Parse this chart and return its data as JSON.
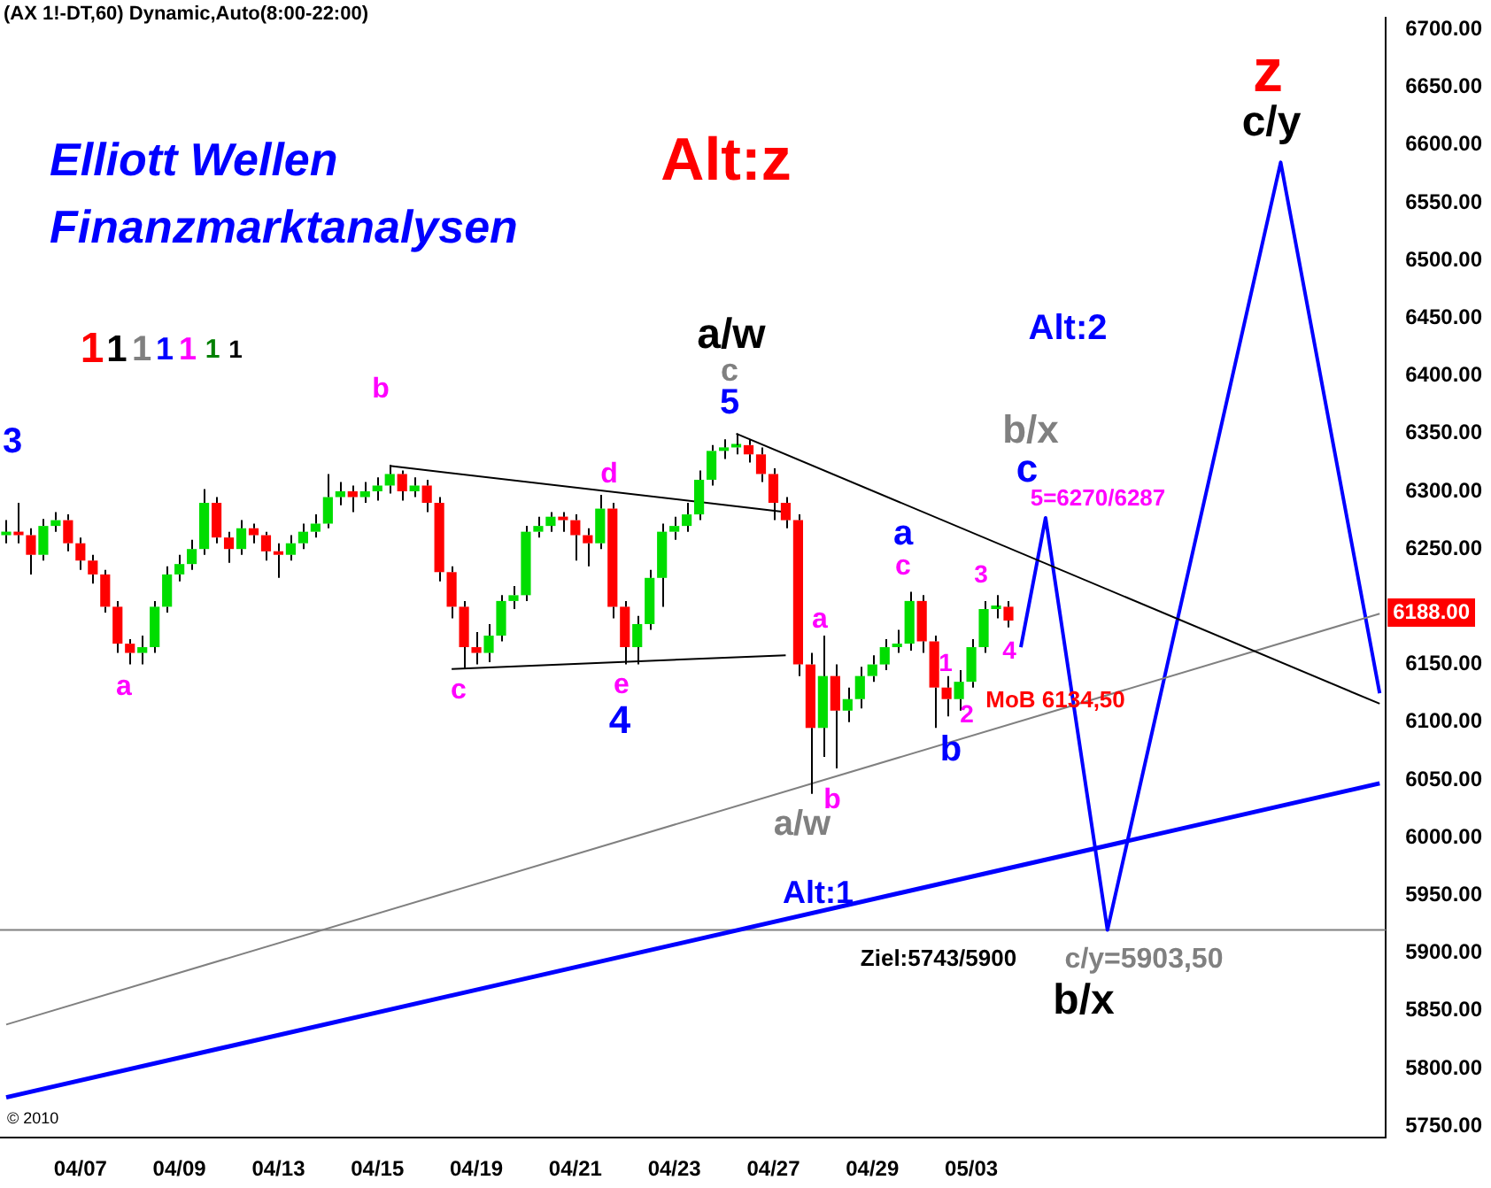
{
  "chart_data": {
    "type": "candlestick",
    "title": "(AX 1!-DT,60) Dynamic,Auto(8:00-22:00)",
    "categories": [
      null,
      null,
      null,
      null,
      null,
      null,
      "04/07",
      null,
      null,
      null,
      null,
      null,
      null,
      null,
      "04/09",
      null,
      null,
      null,
      null,
      null,
      null,
      null,
      "04/13",
      null,
      null,
      null,
      null,
      null,
      null,
      null,
      "04/15",
      null,
      null,
      null,
      null,
      null,
      null,
      null,
      "04/19",
      null,
      null,
      null,
      null,
      null,
      null,
      null,
      "04/21",
      null,
      null,
      null,
      null,
      null,
      null,
      null,
      "04/23",
      null,
      null,
      null,
      null,
      null,
      null,
      null,
      "04/27",
      null,
      null,
      null,
      null,
      null,
      null,
      null,
      "04/29",
      null,
      null,
      null,
      null,
      null,
      null,
      null,
      "05/03",
      null,
      null,
      null,
      null,
      null,
      null,
      null,
      null,
      null,
      null,
      null,
      null,
      null,
      null,
      null,
      null,
      null,
      null,
      null,
      null,
      null,
      null,
      null,
      null,
      null,
      null,
      null,
      null,
      null,
      null,
      null,
      null,
      null
    ],
    "ohlc": [
      [
        6262,
        6275,
        6255,
        6265
      ],
      [
        6265,
        6290,
        6255,
        6262
      ],
      [
        6262,
        6268,
        6228,
        6245
      ],
      [
        6245,
        6276,
        6240,
        6270
      ],
      [
        6270,
        6282,
        6265,
        6275
      ],
      [
        6275,
        6280,
        6248,
        6255
      ],
      [
        6255,
        6260,
        6232,
        6240
      ],
      [
        6240,
        6245,
        6220,
        6228
      ],
      [
        6228,
        6232,
        6195,
        6200
      ],
      [
        6200,
        6205,
        6160,
        6168
      ],
      [
        6168,
        6172,
        6150,
        6160
      ],
      [
        6160,
        6175,
        6150,
        6165
      ],
      [
        6165,
        6205,
        6160,
        6200
      ],
      [
        6200,
        6235,
        6195,
        6228
      ],
      [
        6228,
        6245,
        6222,
        6237
      ],
      [
        6237,
        6258,
        6232,
        6250
      ],
      [
        6250,
        6302,
        6245,
        6290
      ],
      [
        6290,
        6295,
        6255,
        6260
      ],
      [
        6260,
        6265,
        6238,
        6250
      ],
      [
        6250,
        6275,
        6245,
        6268
      ],
      [
        6268,
        6272,
        6255,
        6262
      ],
      [
        6262,
        6265,
        6240,
        6248
      ],
      [
        6248,
        6255,
        6225,
        6245
      ],
      [
        6245,
        6262,
        6240,
        6255
      ],
      [
        6255,
        6272,
        6250,
        6265
      ],
      [
        6265,
        6280,
        6260,
        6272
      ],
      [
        6272,
        6315,
        6268,
        6295
      ],
      [
        6295,
        6308,
        6288,
        6300
      ],
      [
        6300,
        6305,
        6282,
        6295
      ],
      [
        6295,
        6308,
        6290,
        6300
      ],
      [
        6300,
        6312,
        6292,
        6305
      ],
      [
        6305,
        6323,
        6298,
        6315
      ],
      [
        6315,
        6318,
        6292,
        6300
      ],
      [
        6300,
        6312,
        6295,
        6305
      ],
      [
        6305,
        6310,
        6282,
        6290
      ],
      [
        6290,
        6295,
        6222,
        6230
      ],
      [
        6230,
        6235,
        6190,
        6200
      ],
      [
        6200,
        6205,
        6147,
        6165
      ],
      [
        6165,
        6178,
        6150,
        6160
      ],
      [
        6160,
        6185,
        6152,
        6175
      ],
      [
        6175,
        6210,
        6170,
        6205
      ],
      [
        6205,
        6218,
        6198,
        6210
      ],
      [
        6210,
        6270,
        6205,
        6265
      ],
      [
        6265,
        6278,
        6260,
        6270
      ],
      [
        6270,
        6282,
        6265,
        6278
      ],
      [
        6278,
        6282,
        6265,
        6275
      ],
      [
        6275,
        6280,
        6240,
        6262
      ],
      [
        6262,
        6268,
        6235,
        6255
      ],
      [
        6255,
        6297,
        6250,
        6285
      ],
      [
        6285,
        6290,
        6190,
        6200
      ],
      [
        6200,
        6205,
        6150,
        6165
      ],
      [
        6165,
        6192,
        6150,
        6185
      ],
      [
        6185,
        6232,
        6180,
        6225
      ],
      [
        6225,
        6272,
        6200,
        6265
      ],
      [
        6265,
        6278,
        6258,
        6270
      ],
      [
        6270,
        6290,
        6265,
        6280
      ],
      [
        6280,
        6318,
        6275,
        6310
      ],
      [
        6310,
        6340,
        6305,
        6335
      ],
      [
        6335,
        6345,
        6328,
        6338
      ],
      [
        6338,
        6350,
        6332,
        6340
      ],
      [
        6340,
        6345,
        6325,
        6332
      ],
      [
        6332,
        6338,
        6308,
        6315
      ],
      [
        6315,
        6320,
        6275,
        6290
      ],
      [
        6290,
        6295,
        6268,
        6275
      ],
      [
        6275,
        6280,
        6140,
        6150
      ],
      [
        6150,
        6160,
        6038,
        6095
      ],
      [
        6095,
        6175,
        6070,
        6140
      ],
      [
        6140,
        6150,
        6060,
        6110
      ],
      [
        6110,
        6130,
        6100,
        6120
      ],
      [
        6120,
        6148,
        6112,
        6140
      ],
      [
        6140,
        6158,
        6135,
        6150
      ],
      [
        6150,
        6172,
        6145,
        6165
      ],
      [
        6165,
        6180,
        6160,
        6168
      ],
      [
        6168,
        6213,
        6162,
        6205
      ],
      [
        6205,
        6210,
        6160,
        6170
      ],
      [
        6170,
        6175,
        6095,
        6130
      ],
      [
        6130,
        6140,
        6105,
        6120
      ],
      [
        6120,
        6145,
        6110,
        6135
      ],
      [
        6135,
        6172,
        6130,
        6165
      ],
      [
        6165,
        6205,
        6160,
        6198
      ],
      [
        6198,
        6210,
        6190,
        6200
      ],
      [
        6200,
        6205,
        6182,
        6188
      ],
      null,
      null,
      null,
      null,
      null,
      null,
      null,
      null,
      null,
      null,
      null,
      null,
      null,
      null,
      null,
      null,
      null,
      null,
      null,
      null,
      null,
      null,
      null,
      null,
      null,
      null,
      null,
      null,
      null,
      null
    ],
    "series": [
      {
        "type": "line",
        "color": "#000000",
        "values": [
          null,
          null,
          null,
          null,
          null,
          null,
          null,
          null,
          null,
          null,
          null,
          null,
          null,
          null,
          null,
          null,
          null,
          null,
          null,
          null,
          null,
          null,
          null,
          null,
          null,
          null,
          null,
          null,
          null,
          null,
          null,
          6322,
          null,
          null,
          null,
          null,
          null,
          null,
          null,
          null,
          null,
          null,
          null,
          null,
          null,
          null,
          null,
          null,
          null,
          null,
          null,
          null,
          null,
          null,
          null,
          null,
          null,
          null,
          null,
          null,
          null,
          null,
          null,
          6282,
          null,
          null,
          null,
          null,
          null,
          null,
          null,
          null,
          null,
          null,
          null,
          null,
          null,
          null,
          null,
          null,
          null,
          null,
          null,
          null,
          null,
          null,
          null,
          null,
          null,
          null,
          null,
          null,
          null,
          null,
          null,
          null,
          null,
          null,
          null,
          null,
          null,
          null,
          null,
          null,
          null,
          null,
          null,
          null,
          null,
          null,
          null,
          null
        ]
      },
      {
        "type": "line",
        "color": "#000000",
        "values": [
          null,
          null,
          null,
          null,
          null,
          null,
          null,
          null,
          null,
          null,
          null,
          null,
          null,
          null,
          null,
          null,
          null,
          null,
          null,
          null,
          null,
          null,
          null,
          null,
          null,
          null,
          null,
          null,
          null,
          null,
          null,
          null,
          null,
          null,
          null,
          null,
          6146,
          null,
          null,
          null,
          null,
          null,
          null,
          null,
          null,
          null,
          null,
          null,
          null,
          null,
          null,
          null,
          null,
          null,
          null,
          null,
          null,
          null,
          null,
          null,
          null,
          null,
          null,
          6158,
          null,
          null,
          null,
          null,
          null,
          null,
          null,
          null,
          null,
          null,
          null,
          null,
          null,
          null,
          null,
          null,
          null,
          null,
          null,
          null,
          null,
          null,
          null,
          null,
          null,
          null,
          null,
          null,
          null,
          null,
          null,
          null,
          null,
          null,
          null,
          null,
          null,
          null,
          null,
          null,
          null,
          null,
          null,
          null,
          null,
          null,
          null,
          null
        ]
      },
      {
        "type": "line",
        "color": "#000000",
        "values": [
          null,
          null,
          null,
          null,
          null,
          null,
          null,
          null,
          null,
          null,
          null,
          null,
          null,
          null,
          null,
          null,
          null,
          null,
          null,
          null,
          null,
          null,
          null,
          null,
          null,
          null,
          null,
          null,
          null,
          null,
          null,
          null,
          null,
          null,
          null,
          null,
          null,
          null,
          null,
          null,
          null,
          null,
          null,
          null,
          null,
          null,
          null,
          null,
          null,
          null,
          null,
          null,
          null,
          null,
          null,
          null,
          null,
          null,
          null,
          6350,
          null,
          null,
          null,
          null,
          null,
          null,
          null,
          null,
          null,
          null,
          null,
          null,
          null,
          null,
          null,
          null,
          null,
          null,
          null,
          null,
          null,
          null,
          null,
          null,
          null,
          null,
          null,
          null,
          null,
          null,
          null,
          null,
          null,
          null,
          null,
          null,
          null,
          null,
          null,
          null,
          null,
          null,
          null,
          null,
          null,
          null,
          null,
          null,
          null,
          null,
          null,
          6116
        ]
      },
      {
        "type": "line",
        "color": "#808080",
        "values": [
          5838,
          null,
          null,
          null,
          null,
          null,
          null,
          null,
          null,
          null,
          null,
          null,
          null,
          null,
          null,
          null,
          null,
          null,
          null,
          null,
          null,
          null,
          null,
          null,
          null,
          null,
          null,
          null,
          null,
          null,
          null,
          null,
          null,
          null,
          null,
          null,
          null,
          null,
          null,
          null,
          null,
          null,
          null,
          null,
          null,
          null,
          null,
          null,
          null,
          null,
          null,
          null,
          null,
          null,
          null,
          null,
          null,
          null,
          null,
          null,
          null,
          null,
          null,
          null,
          null,
          null,
          null,
          null,
          null,
          null,
          null,
          null,
          null,
          null,
          null,
          null,
          null,
          null,
          null,
          null,
          null,
          null,
          null,
          null,
          null,
          null,
          null,
          null,
          null,
          null,
          null,
          null,
          null,
          null,
          null,
          null,
          null,
          null,
          null,
          null,
          null,
          null,
          null,
          null,
          null,
          null,
          null,
          null,
          null,
          null,
          null,
          6194
        ]
      },
      {
        "type": "line",
        "color": "#0000ff",
        "values": [
          5775,
          null,
          null,
          null,
          null,
          null,
          null,
          null,
          null,
          null,
          null,
          null,
          null,
          null,
          null,
          null,
          null,
          null,
          null,
          null,
          null,
          null,
          null,
          null,
          null,
          null,
          null,
          null,
          null,
          null,
          null,
          null,
          null,
          null,
          null,
          null,
          null,
          null,
          null,
          null,
          null,
          null,
          null,
          null,
          null,
          null,
          null,
          null,
          null,
          null,
          null,
          null,
          null,
          null,
          null,
          null,
          null,
          null,
          null,
          null,
          null,
          null,
          null,
          null,
          null,
          null,
          null,
          null,
          null,
          null,
          null,
          null,
          null,
          null,
          null,
          null,
          null,
          null,
          null,
          null,
          null,
          null,
          null,
          null,
          null,
          null,
          null,
          null,
          null,
          null,
          null,
          null,
          null,
          null,
          null,
          null,
          null,
          null,
          null,
          null,
          null,
          null,
          null,
          null,
          null,
          null,
          null,
          null,
          null,
          null,
          null,
          6047
        ]
      },
      {
        "type": "line",
        "color": "#0000ff",
        "values": [
          null,
          null,
          null,
          null,
          null,
          null,
          null,
          null,
          null,
          null,
          null,
          null,
          null,
          null,
          null,
          null,
          null,
          null,
          null,
          null,
          null,
          null,
          null,
          null,
          null,
          null,
          null,
          null,
          null,
          null,
          null,
          null,
          null,
          null,
          null,
          null,
          null,
          null,
          null,
          null,
          null,
          null,
          null,
          null,
          null,
          null,
          null,
          null,
          null,
          null,
          null,
          null,
          null,
          null,
          null,
          null,
          null,
          null,
          null,
          null,
          null,
          null,
          null,
          null,
          null,
          null,
          null,
          null,
          null,
          null,
          null,
          null,
          null,
          null,
          null,
          null,
          null,
          null,
          null,
          null,
          null,
          null,
          6165,
          null,
          6277,
          null,
          null,
          null,
          null,
          5920,
          null,
          null,
          null,
          null,
          null,
          null,
          null,
          null,
          null,
          null,
          null,
          null,
          null,
          6585,
          null,
          null,
          null,
          null,
          null,
          null,
          null,
          6125
        ]
      }
    ],
    "ylim": [
      5740,
      6710
    ],
    "yticks": [
      {
        "value": 5750,
        "label": "5750.00"
      },
      {
        "value": 5800,
        "label": "5800.00"
      },
      {
        "value": 5850,
        "label": "5850.00"
      },
      {
        "value": 5900,
        "label": "5900.00"
      },
      {
        "value": 5950,
        "label": "5950.00"
      },
      {
        "value": 6000,
        "label": "6000.00"
      },
      {
        "value": 6050,
        "label": "6050.00"
      },
      {
        "value": 6100,
        "label": "6100.00"
      },
      {
        "value": 6150,
        "label": "6150.00"
      },
      {
        "value": 6250,
        "label": "6250.00"
      },
      {
        "value": 6300,
        "label": "6300.00"
      },
      {
        "value": 6350,
        "label": "6350.00"
      },
      {
        "value": 6400,
        "label": "6400.00"
      },
      {
        "value": 6450,
        "label": "6450.00"
      },
      {
        "value": 6500,
        "label": "6500.00"
      },
      {
        "value": 6550,
        "label": "6550.00"
      },
      {
        "value": 6600,
        "label": "6600.00"
      },
      {
        "value": 6650,
        "label": "6650.00"
      },
      {
        "value": 6700,
        "label": "6700.00"
      }
    ],
    "ref_lines": [
      {
        "axis": "y",
        "value": 5920,
        "color": "#808080"
      }
    ],
    "grid": false,
    "legend": false,
    "marker": "none",
    "annotations": [
      "Elliott Wellen",
      "Finanzmarktanalysen",
      "1",
      "1",
      "1",
      "1",
      "1",
      "1",
      "1",
      "3",
      "a",
      "b",
      "c",
      "d",
      "e",
      "4",
      "Alt:z",
      "a/w",
      "c",
      "5",
      "a",
      "b",
      "a/w",
      "a",
      "c",
      "1",
      "2",
      "b",
      "3",
      "4",
      "Alt:2",
      "b/x",
      "c",
      "5=6270/6287",
      "MoB 6134,50",
      "Alt:1",
      "Ziel:5743/5900",
      "c/y=5903,50",
      "b/x",
      "z",
      "c/y",
      "© 2010",
      "6188.00"
    ]
  }
}
